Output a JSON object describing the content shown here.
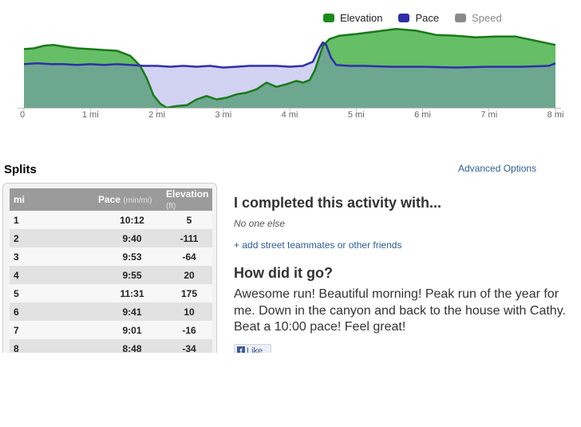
{
  "chart": {
    "legend": [
      {
        "label": "Elevation",
        "color": "#1a8a1a"
      },
      {
        "label": "Pace",
        "color": "#2e2eaa"
      },
      {
        "label": "Speed",
        "color": "#8a8a8a"
      }
    ],
    "x_ticks": [
      "0",
      "1 mi",
      "2 mi",
      "3 mi",
      "4 mi",
      "5 mi",
      "6 mi",
      "7 mi",
      "8 mi"
    ]
  },
  "chart_data": {
    "type": "area",
    "x_range": [
      0,
      8
    ],
    "series": [
      {
        "name": "Elevation",
        "color": "#55b755",
        "x": [
          0,
          0.15,
          0.3,
          0.45,
          0.6,
          0.8,
          1.0,
          1.2,
          1.4,
          1.6,
          1.75,
          1.85,
          1.95,
          2.05,
          2.15,
          2.3,
          2.45,
          2.6,
          2.75,
          2.9,
          3.05,
          3.2,
          3.35,
          3.5,
          3.65,
          3.8,
          3.95,
          4.1,
          4.2,
          4.3,
          4.38,
          4.45,
          4.5,
          4.6,
          4.75,
          5.0,
          5.3,
          5.6,
          5.9,
          6.2,
          6.5,
          6.8,
          7.1,
          7.4,
          7.7,
          8.0
        ],
        "values": [
          0.7,
          0.71,
          0.74,
          0.75,
          0.73,
          0.71,
          0.7,
          0.69,
          0.68,
          0.62,
          0.5,
          0.35,
          0.15,
          0.05,
          0,
          0.02,
          0.03,
          0.1,
          0.14,
          0.1,
          0.12,
          0.16,
          0.18,
          0.22,
          0.3,
          0.25,
          0.28,
          0.32,
          0.3,
          0.33,
          0.45,
          0.62,
          0.74,
          0.82,
          0.86,
          0.88,
          0.91,
          0.94,
          0.92,
          0.87,
          0.86,
          0.84,
          0.85,
          0.85,
          0.8,
          0.75
        ]
      },
      {
        "name": "Pace",
        "color": "#2e2eaa",
        "x": [
          0,
          0.2,
          0.4,
          0.6,
          0.8,
          1.0,
          1.2,
          1.4,
          1.6,
          1.8,
          2.0,
          2.2,
          2.4,
          2.6,
          2.8,
          3.0,
          3.2,
          3.4,
          3.6,
          3.8,
          4.0,
          4.2,
          4.35,
          4.45,
          4.5,
          4.55,
          4.62,
          4.7,
          4.9,
          5.1,
          5.5,
          6.0,
          6.5,
          7.0,
          7.5,
          7.9,
          8.0
        ],
        "values": [
          0.52,
          0.53,
          0.52,
          0.52,
          0.51,
          0.52,
          0.51,
          0.52,
          0.51,
          0.5,
          0.5,
          0.49,
          0.5,
          0.49,
          0.5,
          0.48,
          0.49,
          0.5,
          0.5,
          0.5,
          0.49,
          0.5,
          0.55,
          0.72,
          0.78,
          0.75,
          0.6,
          0.51,
          0.5,
          0.5,
          0.49,
          0.49,
          0.48,
          0.49,
          0.49,
          0.5,
          0.53
        ]
      }
    ]
  },
  "splits": {
    "title": "Splits",
    "advanced_link": "Advanced Options",
    "headers": {
      "mi": "mi",
      "pace": "Pace",
      "pace_unit": "(min/mi)",
      "elev": "Elevation",
      "elev_unit": "(ft)"
    },
    "rows": [
      {
        "mi": "1",
        "pace": "10:12",
        "elev": "5"
      },
      {
        "mi": "2",
        "pace": "9:40",
        "elev": "-111"
      },
      {
        "mi": "3",
        "pace": "9:53",
        "elev": "-64"
      },
      {
        "mi": "4",
        "pace": "9:55",
        "elev": "20"
      },
      {
        "mi": "5",
        "pace": "11:31",
        "elev": "175"
      },
      {
        "mi": "6",
        "pace": "9:41",
        "elev": "10"
      },
      {
        "mi": "7",
        "pace": "9:01",
        "elev": "-16"
      },
      {
        "mi": "8",
        "pace": "8:48",
        "elev": "-34"
      }
    ]
  },
  "activity": {
    "companions_title": "I completed this activity with...",
    "companions_value": "No one else",
    "add_friends": "+ add street teammates or other friends",
    "how_title": "How did it go?",
    "comment": "Awesome run! Beautiful morning! Peak run of the year for me. Down in the canyon and back to the house with Cathy. Beat a 10:00 pace! Feel great!",
    "like_label": "Like"
  }
}
